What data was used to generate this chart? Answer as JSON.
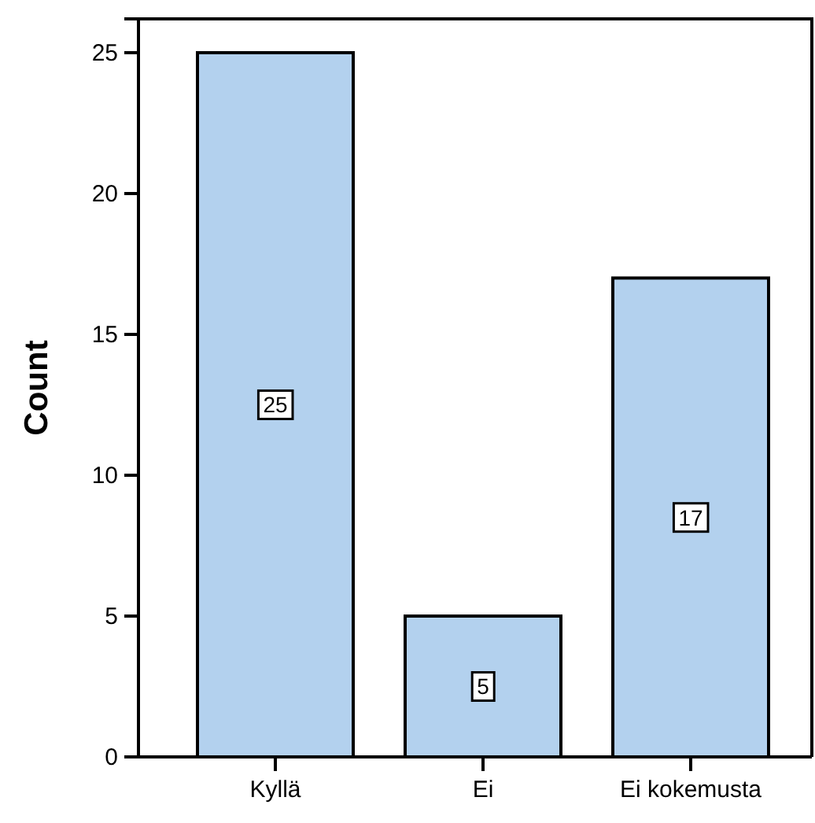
{
  "chart_data": {
    "type": "bar",
    "categories": [
      "Kyllä",
      "Ei",
      "Ei kokemusta"
    ],
    "values": [
      25,
      5,
      17
    ],
    "color": "#b3d1ee",
    "ylabel": "Count",
    "ylim": [
      0,
      26.2
    ],
    "yticks": [
      0,
      5,
      10,
      15,
      20,
      25
    ],
    "data_labels": true,
    "grid": false
  }
}
